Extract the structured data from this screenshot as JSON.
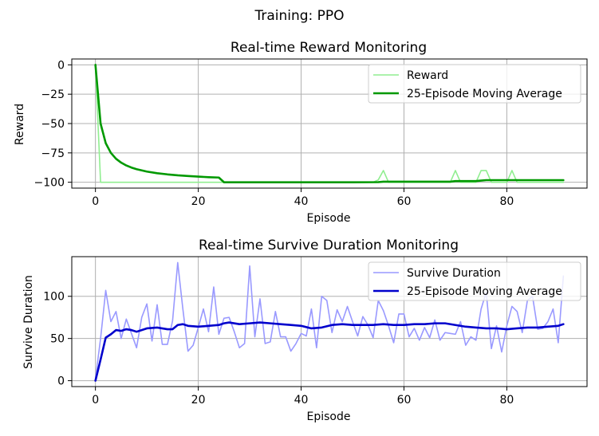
{
  "figure": {
    "suptitle": "Training: PPO"
  },
  "colors": {
    "reward_raw": "#90ee90",
    "reward_avg": "#009900",
    "duration_raw": "#9999ff",
    "duration_avg": "#0000cc",
    "grid": "#b0b0b0"
  },
  "chart_data": [
    {
      "type": "line",
      "title": "Real-time Reward Monitoring",
      "xlabel": "Episode",
      "ylabel": "Reward",
      "xlim": [
        -4.6,
        95.6
      ],
      "ylim": [
        -105,
        5
      ],
      "xticks": [
        0,
        20,
        40,
        60,
        80
      ],
      "yticks": [
        0,
        -25,
        -50,
        -75,
        -100
      ],
      "grid": true,
      "legend": "top-right",
      "series": [
        {
          "name": "Reward",
          "x": [
            0,
            1,
            2,
            24,
            25,
            54,
            55,
            56,
            57,
            69,
            70,
            71,
            74,
            75,
            76,
            77,
            80,
            81,
            82,
            91
          ],
          "values": [
            0,
            -100,
            -100,
            -100,
            -100,
            -100,
            -98,
            -90,
            -100,
            -100,
            -90,
            -100,
            -100,
            -90,
            -90,
            -100,
            -100,
            -90,
            -100,
            -100
          ]
        },
        {
          "name": "25-Episode Moving Average",
          "x": [
            0,
            1,
            2,
            3,
            4,
            5,
            6,
            7,
            8,
            10,
            12,
            14,
            16,
            18,
            20,
            22,
            24,
            25,
            30,
            40,
            50,
            55,
            56,
            60,
            69,
            70,
            74,
            75,
            76,
            80,
            91
          ],
          "values": [
            0,
            -50,
            -66.7,
            -75,
            -80,
            -83.3,
            -85.7,
            -87.5,
            -88.9,
            -90.9,
            -92.3,
            -93.3,
            -94.1,
            -94.7,
            -95.2,
            -95.7,
            -96,
            -100,
            -100,
            -100,
            -100,
            -99.9,
            -99.5,
            -99.5,
            -99.5,
            -99,
            -99,
            -98.6,
            -98.2,
            -98.2,
            -98.2
          ]
        }
      ]
    },
    {
      "type": "line",
      "title": "Real-time Survive Duration Monitoring",
      "xlabel": "Episode",
      "ylabel": "Survive Duration",
      "xlim": [
        -4.6,
        95.6
      ],
      "ylim": [
        -7,
        147
      ],
      "xticks": [
        0,
        20,
        40,
        60,
        80
      ],
      "yticks": [
        0,
        50,
        100
      ],
      "grid": true,
      "legend": "top-right",
      "series": [
        {
          "name": "Survive Duration",
          "x": [
            0,
            1,
            2,
            3,
            4,
            5,
            6,
            7,
            8,
            9,
            10,
            11,
            12,
            13,
            14,
            15,
            16,
            17,
            18,
            19,
            20,
            21,
            22,
            23,
            24,
            25,
            26,
            27,
            28,
            29,
            30,
            31,
            32,
            33,
            34,
            35,
            36,
            37,
            38,
            39,
            40,
            41,
            42,
            43,
            44,
            45,
            46,
            47,
            48,
            49,
            50,
            51,
            52,
            53,
            54,
            55,
            56,
            57,
            58,
            59,
            60,
            61,
            62,
            63,
            64,
            65,
            66,
            67,
            68,
            69,
            70,
            71,
            72,
            73,
            74,
            75,
            76,
            77,
            78,
            79,
            80,
            81,
            82,
            83,
            84,
            85,
            86,
            87,
            88,
            89,
            90,
            91
          ],
          "values": [
            2,
            50,
            107,
            70,
            82,
            50,
            73,
            56,
            39,
            75,
            91,
            47,
            90,
            43,
            43,
            71,
            140,
            85,
            35,
            42,
            63,
            85,
            58,
            111,
            55,
            74,
            75,
            58,
            39,
            44,
            136,
            52,
            97,
            44,
            46,
            82,
            52,
            52,
            35,
            44,
            56,
            53,
            85,
            39,
            100,
            95,
            57,
            84,
            70,
            88,
            70,
            53,
            76,
            66,
            51,
            95,
            83,
            65,
            45,
            79,
            79,
            52,
            62,
            48,
            63,
            51,
            72,
            48,
            57,
            56,
            55,
            70,
            42,
            52,
            48,
            85,
            105,
            38,
            65,
            34,
            65,
            88,
            82,
            57,
            95,
            100,
            61,
            62,
            70,
            85,
            45,
            124
          ]
        },
        {
          "name": "25-Episode Moving Average",
          "x": [
            0,
            1,
            2,
            3,
            4,
            5,
            6,
            7,
            8,
            9,
            10,
            12,
            14,
            15,
            16,
            17,
            18,
            20,
            22,
            24,
            25,
            26,
            28,
            30,
            32,
            34,
            36,
            38,
            40,
            42,
            44,
            46,
            48,
            50,
            52,
            54,
            56,
            58,
            60,
            62,
            64,
            66,
            68,
            70,
            72,
            74,
            76,
            78,
            80,
            82,
            84,
            86,
            88,
            90,
            91
          ],
          "values": [
            0,
            25,
            51,
            55,
            60,
            59,
            61,
            60,
            58,
            60,
            62,
            63,
            61,
            61,
            66,
            67,
            65,
            64,
            65,
            66,
            68,
            69,
            67,
            68,
            69,
            68,
            67,
            66,
            65,
            62,
            63,
            66,
            67,
            66,
            66,
            66,
            67,
            66,
            66,
            67,
            67,
            68,
            68,
            66,
            64,
            63,
            62,
            62,
            61,
            62,
            63,
            63,
            64,
            65,
            67
          ]
        }
      ]
    }
  ]
}
